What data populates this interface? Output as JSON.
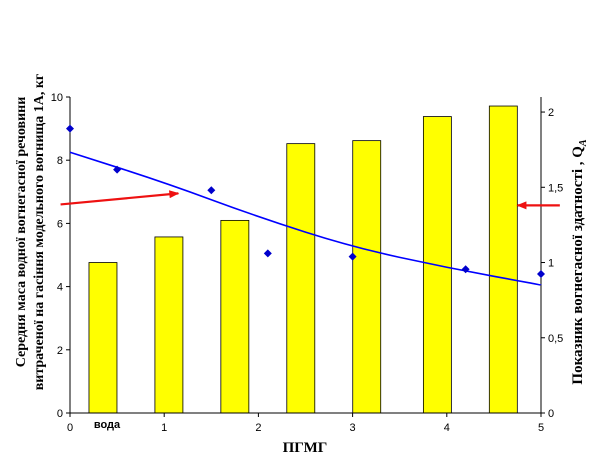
{
  "chart_data": {
    "type": "bar",
    "xlabel": "ПГМГ",
    "ylabel": [
      "Середня маса водної вогнегасної речовини",
      "витраченої на гасіння модельного вогнища 1А, кг"
    ],
    "ylabel_right": "Показник вогнегасної здатності , Q",
    "ylabel_right_sub": "A",
    "category_label": "вода",
    "x_ticks": [
      0,
      1,
      2,
      3,
      4,
      5
    ],
    "xlim": [
      0,
      5
    ],
    "ylim": [
      0,
      10
    ],
    "y_ticks": [
      0,
      2,
      4,
      6,
      8,
      10
    ],
    "y2lim": [
      0,
      2.1
    ],
    "y2_ticks": [
      "0",
      "0,5",
      "1",
      "1,5",
      "2"
    ],
    "y2_tick_values": [
      0,
      0.5,
      1,
      1.5,
      2
    ],
    "grid": false,
    "legend": false,
    "bars": {
      "axis": "right",
      "x": [
        0.35,
        1.05,
        1.75,
        2.45,
        3.15,
        3.9,
        4.6
      ],
      "values": [
        1.0,
        1.17,
        1.28,
        1.79,
        1.81,
        1.97,
        2.04
      ],
      "color": "#ffff00"
    },
    "points": {
      "axis": "left",
      "x": [
        0,
        0.5,
        1.5,
        2.1,
        3,
        4.2,
        5
      ],
      "y": [
        9.0,
        7.7,
        7.05,
        5.05,
        4.95,
        4.55,
        4.4
      ],
      "color": "#0000cc"
    },
    "trendline": {
      "axis": "left",
      "x": [
        0,
        1,
        2,
        3,
        4,
        5
      ],
      "y": [
        8.25,
        7.3,
        6.2,
        5.25,
        4.6,
        4.05
      ],
      "color": "#0000ff"
    },
    "arrows": [
      {
        "label": "left-arrow",
        "from": [
          -0.1,
          6.6
        ],
        "to": [
          1.15,
          6.95
        ],
        "points_to": "left"
      },
      {
        "label": "right-arrow",
        "from": [
          5.2,
          1.38
        ],
        "to": [
          4.75,
          1.38
        ],
        "points_to": "right"
      }
    ],
    "arrow_color": "#ee1111"
  }
}
